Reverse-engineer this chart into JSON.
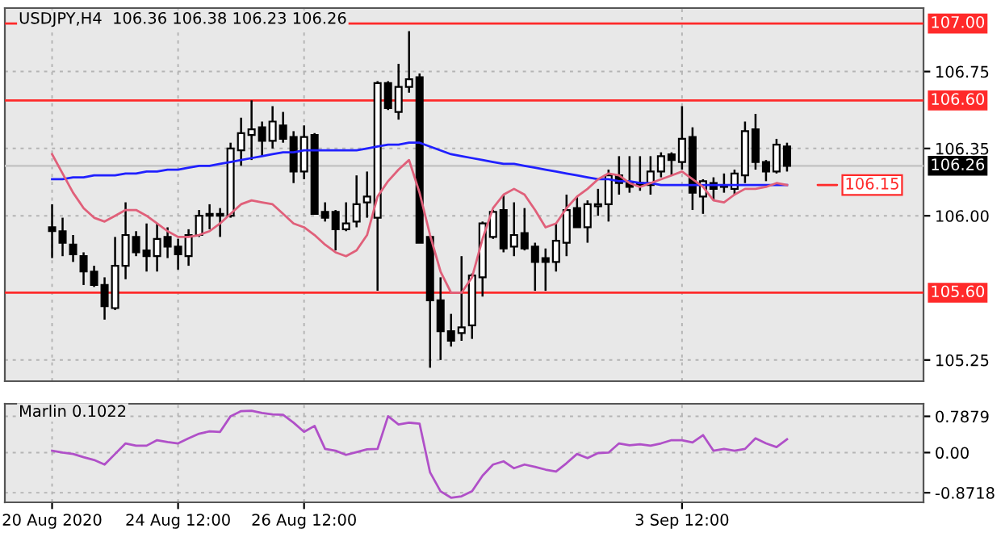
{
  "chart_data": [
    {
      "type": "candlestick",
      "title": "USDJPY,H4  106.36 106.38 106.23 106.26",
      "categories": [
        null,
        null,
        null,
        null,
        null,
        null,
        null,
        null,
        null,
        null,
        null,
        null,
        null,
        null,
        null,
        null,
        null,
        null,
        null,
        null,
        null,
        null,
        null,
        null,
        null,
        null,
        null,
        null,
        null,
        null,
        null,
        null,
        null,
        null,
        null,
        null,
        null,
        null,
        null,
        null,
        null,
        null,
        null,
        null,
        null,
        null,
        null,
        null,
        null,
        null,
        null,
        null,
        null,
        null,
        null,
        null,
        null,
        null,
        null,
        null,
        null,
        null,
        null,
        null,
        null,
        null,
        null,
        null,
        null,
        null,
        null
      ],
      "ohlc": [
        [
          105.94,
          106.06,
          105.78,
          105.92
        ],
        [
          105.92,
          105.99,
          105.79,
          105.86
        ],
        [
          105.85,
          105.9,
          105.76,
          105.8
        ],
        [
          105.79,
          105.81,
          105.64,
          105.71
        ],
        [
          105.71,
          105.74,
          105.63,
          105.64
        ],
        [
          105.64,
          105.68,
          105.46,
          105.53
        ],
        [
          105.52,
          105.89,
          105.51,
          105.74
        ],
        [
          105.74,
          106.07,
          105.67,
          105.9
        ],
        [
          105.89,
          105.92,
          105.79,
          105.81
        ],
        [
          105.82,
          105.96,
          105.71,
          105.79
        ],
        [
          105.79,
          105.96,
          105.71,
          105.88
        ],
        [
          105.89,
          105.94,
          105.78,
          105.84
        ],
        [
          105.84,
          105.88,
          105.72,
          105.8
        ],
        [
          105.79,
          105.93,
          105.74,
          105.9
        ],
        [
          105.9,
          106.03,
          105.89,
          106.0
        ],
        [
          106.0,
          106.06,
          105.93,
          106.01
        ],
        [
          106.01,
          106.04,
          105.89,
          106.0
        ],
        [
          106.0,
          106.38,
          105.99,
          106.35
        ],
        [
          106.34,
          106.51,
          106.26,
          106.43
        ],
        [
          106.42,
          106.6,
          106.29,
          106.45
        ],
        [
          106.46,
          106.49,
          106.31,
          106.39
        ],
        [
          106.39,
          106.57,
          106.35,
          106.49
        ],
        [
          106.47,
          106.54,
          106.38,
          106.4
        ],
        [
          106.41,
          106.44,
          106.17,
          106.23
        ],
        [
          106.23,
          106.47,
          106.19,
          106.41
        ],
        [
          106.42,
          106.43,
          106.01,
          106.01
        ],
        [
          106.02,
          106.07,
          105.97,
          105.99
        ],
        [
          106.02,
          106.03,
          105.82,
          105.93
        ],
        [
          105.93,
          106.07,
          105.92,
          105.96
        ],
        [
          105.97,
          106.21,
          105.94,
          106.06
        ],
        [
          106.07,
          106.23,
          105.99,
          106.1
        ],
        [
          105.99,
          106.7,
          105.61,
          106.69
        ],
        [
          106.69,
          106.7,
          106.55,
          106.56
        ],
        [
          106.54,
          106.79,
          106.5,
          106.67
        ],
        [
          106.67,
          106.96,
          106.64,
          106.71
        ],
        [
          106.72,
          106.74,
          105.86,
          105.86
        ],
        [
          105.89,
          105.89,
          105.21,
          105.56
        ],
        [
          105.56,
          105.68,
          105.25,
          105.4
        ],
        [
          105.4,
          105.49,
          105.32,
          105.35
        ],
        [
          105.39,
          105.79,
          105.35,
          105.42
        ],
        [
          105.43,
          105.7,
          105.36,
          105.69
        ],
        [
          105.68,
          105.97,
          105.58,
          105.96
        ],
        [
          105.89,
          106.03,
          105.88,
          106.02
        ],
        [
          106.03,
          106.11,
          105.81,
          105.83
        ],
        [
          105.84,
          106.07,
          105.79,
          105.9
        ],
        [
          105.91,
          106.04,
          105.82,
          105.83
        ],
        [
          105.84,
          105.86,
          105.61,
          105.76
        ],
        [
          105.78,
          105.83,
          105.61,
          105.76
        ],
        [
          105.76,
          105.96,
          105.71,
          105.87
        ],
        [
          105.86,
          106.11,
          105.79,
          106.03
        ],
        [
          106.04,
          106.1,
          105.94,
          105.94
        ],
        [
          105.94,
          106.08,
          105.86,
          106.06
        ],
        [
          106.05,
          106.14,
          106.0,
          106.06
        ],
        [
          106.06,
          106.24,
          105.97,
          106.21
        ],
        [
          106.21,
          106.31,
          106.11,
          106.17
        ],
        [
          106.17,
          106.31,
          106.12,
          106.15
        ],
        [
          106.16,
          106.31,
          106.13,
          106.17
        ],
        [
          106.16,
          106.31,
          106.11,
          106.23
        ],
        [
          106.23,
          106.33,
          106.2,
          106.31
        ],
        [
          106.32,
          106.33,
          106.21,
          106.29
        ],
        [
          106.28,
          106.57,
          106.24,
          106.4
        ],
        [
          106.41,
          106.46,
          106.03,
          106.12
        ],
        [
          106.1,
          106.19,
          106.01,
          106.18
        ],
        [
          106.17,
          106.2,
          106.08,
          106.14
        ],
        [
          106.15,
          106.22,
          106.12,
          106.15
        ],
        [
          106.14,
          106.24,
          106.11,
          106.22
        ],
        [
          106.21,
          106.49,
          106.17,
          106.44
        ],
        [
          106.45,
          106.53,
          106.24,
          106.28
        ],
        [
          106.28,
          106.29,
          106.18,
          106.23
        ],
        [
          106.23,
          106.4,
          106.22,
          106.37
        ],
        [
          106.36,
          106.38,
          106.23,
          106.26
        ]
      ],
      "series": [
        {
          "type": "line",
          "color": "#2020ff",
          "values": [
            106.19,
            106.19,
            106.2,
            106.2,
            106.21,
            106.21,
            106.21,
            106.22,
            106.22,
            106.23,
            106.23,
            106.24,
            106.24,
            106.25,
            106.26,
            106.26,
            106.27,
            106.28,
            106.29,
            106.3,
            106.31,
            106.32,
            106.33,
            106.33,
            106.34,
            106.34,
            106.34,
            106.34,
            106.34,
            106.34,
            106.35,
            106.36,
            106.37,
            106.37,
            106.38,
            106.38,
            106.36,
            106.34,
            106.32,
            106.31,
            106.3,
            106.29,
            106.28,
            106.27,
            106.27,
            106.26,
            106.25,
            106.24,
            106.23,
            106.22,
            106.21,
            106.2,
            106.19,
            106.19,
            106.18,
            106.18,
            106.17,
            106.17,
            106.16,
            106.16,
            106.16,
            106.16,
            106.16,
            106.16,
            106.16,
            106.16,
            106.16,
            106.16,
            106.16,
            106.16,
            106.16
          ]
        },
        {
          "type": "line",
          "color": "#e0607a",
          "values": [
            106.32,
            106.22,
            106.12,
            106.04,
            105.99,
            105.97,
            106.0,
            106.03,
            106.03,
            106.0,
            105.96,
            105.92,
            105.89,
            105.89,
            105.9,
            105.92,
            105.96,
            106.01,
            106.06,
            106.08,
            106.07,
            106.06,
            106.01,
            105.96,
            105.94,
            105.9,
            105.85,
            105.81,
            105.79,
            105.82,
            105.9,
            106.1,
            106.18,
            106.24,
            106.29,
            106.12,
            105.9,
            105.71,
            105.6,
            105.6,
            105.68,
            105.88,
            106.04,
            106.11,
            106.14,
            106.11,
            106.03,
            105.94,
            105.96,
            106.04,
            106.1,
            106.14,
            106.19,
            106.22,
            106.21,
            106.17,
            106.15,
            106.17,
            106.19,
            106.21,
            106.23,
            106.19,
            106.15,
            106.08,
            106.07,
            106.11,
            106.14,
            106.14,
            106.15,
            106.17,
            106.16
          ]
        }
      ],
      "ylim": [
        105.14,
        107.08
      ],
      "yticks": [
        105.25,
        {
          "value": 106.0,
          "label": "106.00"
        },
        106.35,
        106.75
      ],
      "ref_lines": [
        {
          "axis": "y",
          "value": 107.0,
          "label": "107.00",
          "color": "#ff2a2a"
        },
        {
          "axis": "y",
          "value": 106.6,
          "label": "106.60",
          "color": "#ff2a2a"
        },
        {
          "axis": "y",
          "value": 105.6,
          "label": "105.60",
          "color": "#ff2a2a"
        },
        {
          "axis": "y",
          "value": 106.26,
          "label": "106.26",
          "color": "#c8c8c8"
        }
      ],
      "annotations": [
        "106.15"
      ],
      "grid": true,
      "tick_labels": "y"
    },
    {
      "type": "line",
      "title": "Marlin 0.1022",
      "categories": [
        "20 Aug 2020",
        null,
        null,
        null,
        null,
        null,
        null,
        null,
        null,
        null,
        null,
        null,
        "24 Aug 12:00",
        null,
        null,
        null,
        null,
        null,
        null,
        null,
        null,
        null,
        null,
        null,
        "26 Aug 12:00",
        null,
        null,
        null,
        null,
        null,
        null,
        null,
        null,
        null,
        null,
        null,
        null,
        null,
        null,
        null,
        null,
        null,
        null,
        null,
        null,
        null,
        null,
        null,
        null,
        null,
        null,
        null,
        null,
        null,
        null,
        null,
        null,
        null,
        null,
        null,
        "3 Sep 12:00",
        null,
        null,
        null,
        null,
        null,
        null,
        null,
        null,
        null,
        null
      ],
      "series": [
        {
          "color": "#b050c8",
          "values": [
            0.04,
            0.0,
            -0.03,
            -0.1,
            -0.16,
            -0.26,
            -0.03,
            0.2,
            0.15,
            0.15,
            0.27,
            0.23,
            0.2,
            0.31,
            0.41,
            0.46,
            0.45,
            0.79,
            0.9,
            0.91,
            0.86,
            0.83,
            0.82,
            0.65,
            0.45,
            0.58,
            0.08,
            0.04,
            -0.05,
            0.01,
            0.07,
            0.08,
            0.79,
            0.61,
            0.65,
            0.63,
            -0.43,
            -0.84,
            -0.98,
            -0.95,
            -0.84,
            -0.5,
            -0.26,
            -0.19,
            -0.34,
            -0.26,
            -0.31,
            -0.37,
            -0.41,
            -0.23,
            -0.03,
            -0.12,
            -0.01,
            0.0,
            0.2,
            0.16,
            0.18,
            0.15,
            0.2,
            0.27,
            0.27,
            0.22,
            0.38,
            0.04,
            0.08,
            0.04,
            0.08,
            0.31,
            0.2,
            0.12,
            0.29
          ]
        }
      ],
      "ylim": [
        -1.08,
        1.06
      ],
      "yticks": [
        {
          "value": -0.8718,
          "label": "-0.8718"
        },
        {
          "value": 0,
          "label": "0.00"
        },
        {
          "value": 0.7879,
          "label": "0.7879"
        }
      ],
      "grid": true
    }
  ]
}
